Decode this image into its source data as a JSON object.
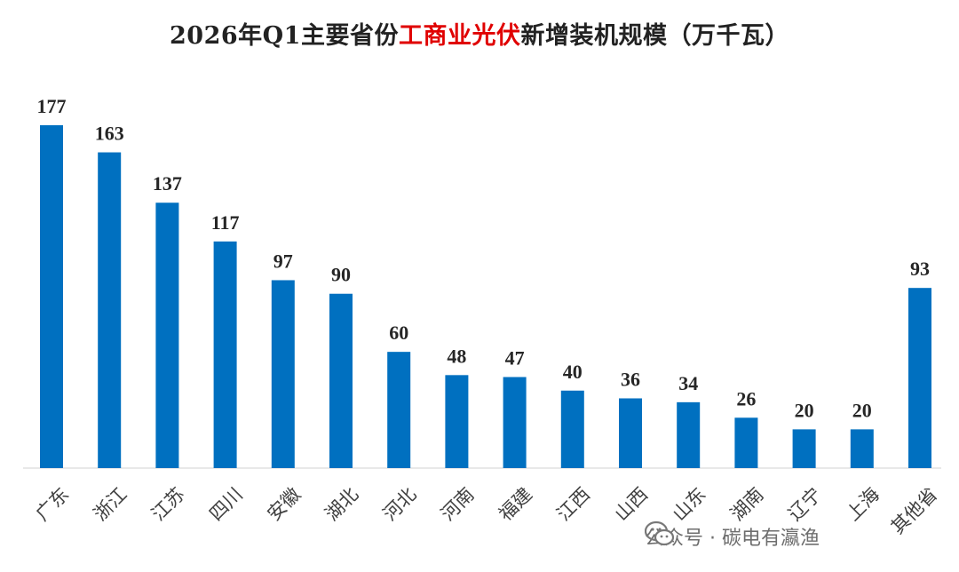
{
  "title": {
    "prefix": "2026年Q1主要省份",
    "highlight": "工商业光伏",
    "suffix": "新增装机规模（万千瓦）",
    "highlight_color": "#e00000"
  },
  "watermark": {
    "text": "公众号 · 碳电有瀛渔",
    "icon": "wechat-icon"
  },
  "chart_data": {
    "type": "bar",
    "categories": [
      "广东",
      "浙江",
      "江苏",
      "四川",
      "安徽",
      "湖北",
      "河北",
      "河南",
      "福建",
      "江西",
      "山西",
      "山东",
      "湖南",
      "辽宁",
      "上海",
      "其他省"
    ],
    "values": [
      177,
      163,
      137,
      117,
      97,
      90,
      60,
      48,
      47,
      40,
      36,
      34,
      26,
      20,
      20,
      93
    ],
    "data_labels": [
      "177",
      "163",
      "137",
      "117",
      "97",
      "90",
      "60",
      "48",
      "47",
      "40",
      "36",
      "34",
      "26",
      "20",
      "20",
      "93"
    ],
    "bar_color": "#0070c0",
    "ylim": [
      0,
      177
    ],
    "grid": false,
    "legend": "none"
  }
}
